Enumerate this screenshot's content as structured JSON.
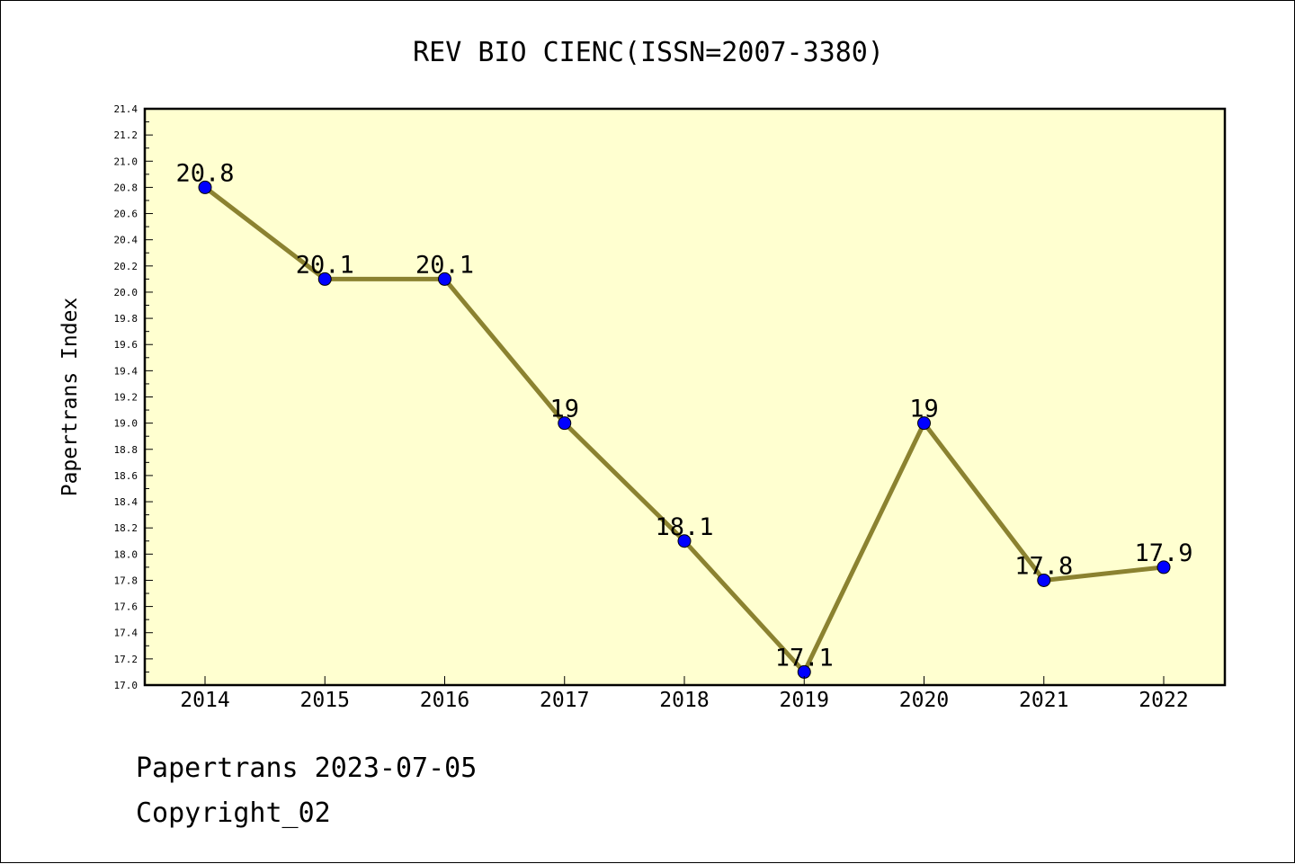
{
  "chart_data": {
    "type": "line",
    "title": "REV BIO CIENC(ISSN=2007-3380)",
    "xlabel": "",
    "ylabel": "Papertrans Index",
    "categories": [
      "2014",
      "2015",
      "2016",
      "2017",
      "2018",
      "2019",
      "2020",
      "2021",
      "2022"
    ],
    "series": [
      {
        "values": [
          20.8,
          20.1,
          20.1,
          19.0,
          18.1,
          17.1,
          19.0,
          17.8,
          17.9
        ],
        "labels": [
          "20.8",
          "20.1",
          "20.1",
          "19",
          "18.1",
          "17.1",
          "19",
          "17.8",
          "17.9"
        ]
      }
    ],
    "ylim": [
      17.0,
      21.4
    ],
    "ytick_step": 0.2,
    "grid": false,
    "plot_background": "#ffffd0",
    "line_color": "#8b8230",
    "marker_color": "#0000ff"
  },
  "footer": {
    "date_line": "Papertrans 2023-07-05",
    "copyright": "Copyright_02"
  }
}
